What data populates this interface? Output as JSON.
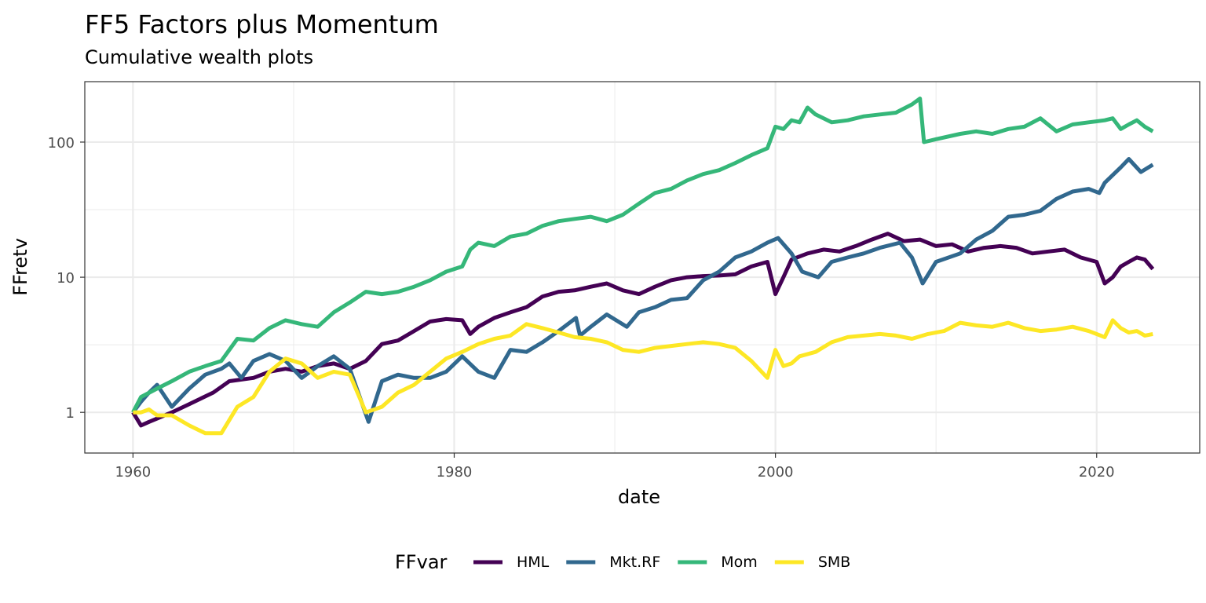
{
  "chart_data": {
    "type": "line",
    "title": "FF5 Factors plus Momentum",
    "subtitle": "Cumulative wealth plots",
    "xlabel": "date",
    "ylabel": "FFretv",
    "x_scale": "date",
    "y_scale": "log10",
    "xlim": [
      "1957-01",
      "2026-06"
    ],
    "ylim": [
      0.5,
      280
    ],
    "x_ticks": [
      {
        "value": "1960-01",
        "label": "1960"
      },
      {
        "value": "1980-01",
        "label": "1980"
      },
      {
        "value": "2000-01",
        "label": "2000"
      },
      {
        "value": "2020-01",
        "label": "2020"
      }
    ],
    "x_minor_ticks": [
      "1970-01",
      "1990-01",
      "2010-01"
    ],
    "y_ticks": [
      {
        "value": 1,
        "label": "1"
      },
      {
        "value": 10,
        "label": "10"
      },
      {
        "value": 100,
        "label": "100"
      }
    ],
    "y_minor_ticks": [
      3.1623,
      31.623
    ],
    "grid": true,
    "legend": {
      "title": "FFvar",
      "position": "bottom"
    },
    "series": [
      {
        "name": "HML",
        "color": "#440154",
        "x": [
          "1960-01",
          "1960-07",
          "1961-01",
          "1961-07",
          "1962-06",
          "1963-07",
          "1965-01",
          "1966-01",
          "1967-07",
          "1968-07",
          "1969-07",
          "1970-07",
          "1971-07",
          "1972-07",
          "1973-07",
          "1974-07",
          "1975-07",
          "1976-07",
          "1977-07",
          "1978-07",
          "1979-07",
          "1980-07",
          "1981-01",
          "1981-07",
          "1982-07",
          "1983-07",
          "1984-07",
          "1985-07",
          "1986-07",
          "1987-07",
          "1988-07",
          "1989-07",
          "1990-07",
          "1991-07",
          "1992-07",
          "1993-07",
          "1994-07",
          "1995-07",
          "1996-07",
          "1997-07",
          "1998-07",
          "1999-07",
          "2000-01",
          "2000-07",
          "2001-01",
          "2002-01",
          "2003-01",
          "2004-01",
          "2005-01",
          "2006-01",
          "2007-01",
          "2008-01",
          "2009-01",
          "2010-01",
          "2011-01",
          "2012-01",
          "2013-01",
          "2014-01",
          "2015-01",
          "2016-01",
          "2017-01",
          "2018-01",
          "2019-01",
          "2020-01",
          "2020-07",
          "2021-01",
          "2021-07",
          "2022-01",
          "2022-07",
          "2023-01",
          "2023-07"
        ],
        "values": [
          1.0,
          0.8,
          0.85,
          0.9,
          1.0,
          1.15,
          1.4,
          1.7,
          1.8,
          2.0,
          2.1,
          2.0,
          2.2,
          2.3,
          2.1,
          2.4,
          3.2,
          3.4,
          4.0,
          4.7,
          4.9,
          4.8,
          3.8,
          4.3,
          5.0,
          5.5,
          6.0,
          7.2,
          7.8,
          8.0,
          8.5,
          9.0,
          8.0,
          7.5,
          8.5,
          9.5,
          10.0,
          10.2,
          10.3,
          10.5,
          12.0,
          13.0,
          7.5,
          10.0,
          13.5,
          15.0,
          16.0,
          15.5,
          17.0,
          19.0,
          21.0,
          18.5,
          19.0,
          17.0,
          17.5,
          15.5,
          16.5,
          17.0,
          16.5,
          15.0,
          15.5,
          16.0,
          14.0,
          13.0,
          9.0,
          10.0,
          12.0,
          13.0,
          14.0,
          13.5,
          11.5
        ]
      },
      {
        "name": "Mkt.RF",
        "color": "#31688E",
        "x": [
          "1960-01",
          "1960-07",
          "1961-01",
          "1961-07",
          "1962-06",
          "1963-07",
          "1964-07",
          "1965-07",
          "1966-01",
          "1966-10",
          "1967-07",
          "1968-07",
          "1969-07",
          "1970-07",
          "1971-07",
          "1972-07",
          "1973-07",
          "1974-09",
          "1975-07",
          "1976-07",
          "1977-07",
          "1978-07",
          "1979-07",
          "1980-07",
          "1981-07",
          "1982-07",
          "1983-07",
          "1984-07",
          "1985-07",
          "1986-07",
          "1987-08",
          "1987-11",
          "1988-07",
          "1989-07",
          "1990-10",
          "1991-07",
          "1992-07",
          "1993-07",
          "1994-07",
          "1995-07",
          "1996-07",
          "1997-07",
          "1998-07",
          "1999-07",
          "2000-03",
          "2001-01",
          "2001-09",
          "2002-09",
          "2003-07",
          "2004-07",
          "2005-07",
          "2006-07",
          "2007-10",
          "2008-07",
          "2009-03",
          "2010-01",
          "2011-07",
          "2012-07",
          "2013-07",
          "2014-07",
          "2015-07",
          "2016-07",
          "2017-07",
          "2018-07",
          "2019-07",
          "2020-03",
          "2020-07",
          "2021-07",
          "2022-01",
          "2022-10",
          "2023-07"
        ],
        "values": [
          1.0,
          1.2,
          1.4,
          1.6,
          1.1,
          1.5,
          1.9,
          2.1,
          2.3,
          1.8,
          2.4,
          2.7,
          2.4,
          1.8,
          2.2,
          2.6,
          2.1,
          0.85,
          1.7,
          1.9,
          1.8,
          1.8,
          2.0,
          2.6,
          2.0,
          1.8,
          2.9,
          2.8,
          3.3,
          4.0,
          5.0,
          3.7,
          4.3,
          5.3,
          4.3,
          5.5,
          6.0,
          6.8,
          7.0,
          9.5,
          11.0,
          14.0,
          15.5,
          18.0,
          19.5,
          15.0,
          11.0,
          10.0,
          13.0,
          14.0,
          15.0,
          16.5,
          18.0,
          14.0,
          9.0,
          13.0,
          15.0,
          19.0,
          22.0,
          28.0,
          29.0,
          31.0,
          38.0,
          43.0,
          45.0,
          42.0,
          50.0,
          65.0,
          75.0,
          60.0,
          68.0
        ]
      },
      {
        "name": "Mom",
        "color": "#35B779",
        "x": [
          "1960-01",
          "1960-07",
          "1961-07",
          "1962-06",
          "1963-07",
          "1964-07",
          "1965-07",
          "1966-07",
          "1967-07",
          "1968-07",
          "1969-07",
          "1970-07",
          "1971-07",
          "1972-07",
          "1973-07",
          "1974-07",
          "1975-07",
          "1976-07",
          "1977-07",
          "1978-07",
          "1979-07",
          "1980-07",
          "1981-01",
          "1981-07",
          "1982-07",
          "1983-07",
          "1984-07",
          "1985-07",
          "1986-07",
          "1987-07",
          "1988-07",
          "1989-07",
          "1990-07",
          "1991-07",
          "1992-07",
          "1993-07",
          "1994-07",
          "1995-07",
          "1996-07",
          "1997-07",
          "1998-07",
          "1999-07",
          "2000-01",
          "2000-07",
          "2001-01",
          "2001-07",
          "2002-01",
          "2002-07",
          "2003-07",
          "2004-07",
          "2005-07",
          "2006-07",
          "2007-07",
          "2008-07",
          "2009-01",
          "2009-04",
          "2010-01",
          "2011-07",
          "2012-07",
          "2013-07",
          "2014-07",
          "2015-07",
          "2016-07",
          "2017-07",
          "2018-07",
          "2019-07",
          "2020-07",
          "2021-01",
          "2021-07",
          "2022-01",
          "2022-07",
          "2023-01",
          "2023-07"
        ],
        "values": [
          1.0,
          1.3,
          1.5,
          1.7,
          2.0,
          2.2,
          2.4,
          3.5,
          3.4,
          4.2,
          4.8,
          4.5,
          4.3,
          5.5,
          6.5,
          7.8,
          7.5,
          7.8,
          8.5,
          9.5,
          11.0,
          12.0,
          16.0,
          18.0,
          17.0,
          20.0,
          21.0,
          24.0,
          26.0,
          27.0,
          28.0,
          26.0,
          29.0,
          35.0,
          42.0,
          45.0,
          52.0,
          58.0,
          62.0,
          70.0,
          80.0,
          90.0,
          130.0,
          125.0,
          145.0,
          140.0,
          180.0,
          160.0,
          140.0,
          145.0,
          155.0,
          160.0,
          165.0,
          190.0,
          210.0,
          100.0,
          105.0,
          115.0,
          120.0,
          115.0,
          125.0,
          130.0,
          150.0,
          120.0,
          135.0,
          140.0,
          145.0,
          150.0,
          125.0,
          135.0,
          145.0,
          130.0,
          120.0
        ]
      },
      {
        "name": "SMB",
        "color": "#FDE725",
        "x": [
          "1960-01",
          "1960-07",
          "1961-01",
          "1961-07",
          "1962-06",
          "1963-07",
          "1964-07",
          "1965-07",
          "1966-07",
          "1967-07",
          "1968-07",
          "1969-07",
          "1970-07",
          "1971-07",
          "1972-07",
          "1973-07",
          "1974-07",
          "1975-07",
          "1976-07",
          "1977-07",
          "1978-07",
          "1979-07",
          "1980-07",
          "1981-07",
          "1982-07",
          "1983-07",
          "1984-07",
          "1985-07",
          "1986-07",
          "1987-07",
          "1988-07",
          "1989-07",
          "1990-07",
          "1991-07",
          "1992-07",
          "1993-07",
          "1994-07",
          "1995-07",
          "1996-07",
          "1997-07",
          "1998-07",
          "1999-07",
          "2000-01",
          "2000-07",
          "2001-01",
          "2001-07",
          "2002-07",
          "2003-07",
          "2004-07",
          "2005-07",
          "2006-07",
          "2007-07",
          "2008-07",
          "2009-07",
          "2010-07",
          "2011-07",
          "2012-07",
          "2013-07",
          "2014-07",
          "2015-07",
          "2016-07",
          "2017-07",
          "2018-07",
          "2019-07",
          "2020-07",
          "2021-01",
          "2021-07",
          "2022-01",
          "2022-07",
          "2023-01",
          "2023-07"
        ],
        "values": [
          1.0,
          1.0,
          1.05,
          0.95,
          0.95,
          0.8,
          0.7,
          0.7,
          1.1,
          1.3,
          2.0,
          2.5,
          2.3,
          1.8,
          2.0,
          1.9,
          1.0,
          1.1,
          1.4,
          1.6,
          2.0,
          2.5,
          2.8,
          3.2,
          3.5,
          3.7,
          4.5,
          4.2,
          3.9,
          3.6,
          3.5,
          3.3,
          2.9,
          2.8,
          3.0,
          3.1,
          3.2,
          3.3,
          3.2,
          3.0,
          2.4,
          1.8,
          2.9,
          2.2,
          2.3,
          2.6,
          2.8,
          3.3,
          3.6,
          3.7,
          3.8,
          3.7,
          3.5,
          3.8,
          4.0,
          4.6,
          4.4,
          4.3,
          4.6,
          4.2,
          4.0,
          4.1,
          4.3,
          4.0,
          3.6,
          4.8,
          4.2,
          3.9,
          4.0,
          3.7,
          3.8
        ]
      }
    ]
  }
}
